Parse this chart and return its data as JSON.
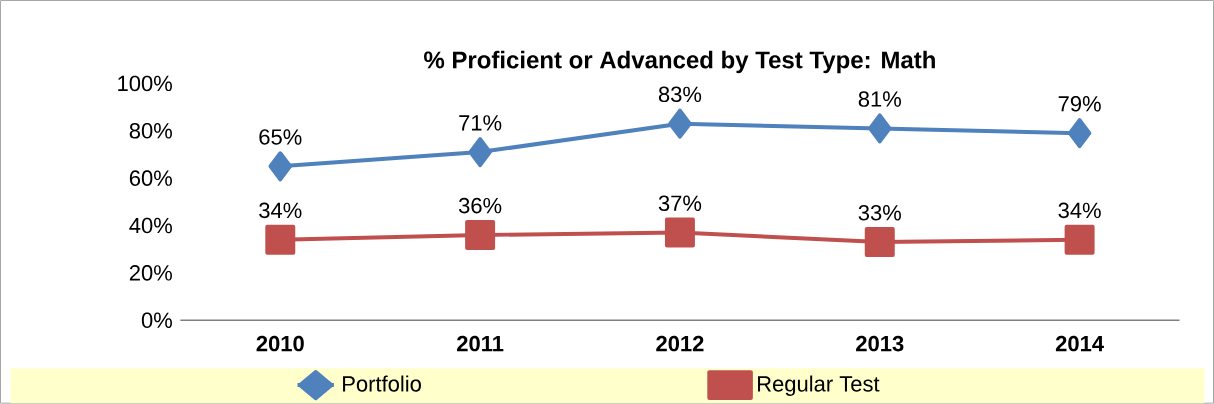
{
  "chart_data": {
    "type": "line",
    "title": "% Proficient or Advanced by Test Type: Math",
    "categories": [
      "2010",
      "2011",
      "2012",
      "2013",
      "2014"
    ],
    "series": [
      {
        "name": "Portfolio",
        "color": "#4f81bd",
        "marker": "diamond",
        "values": [
          65,
          71,
          83,
          81,
          79
        ],
        "value_labels": [
          "65%",
          "71%",
          "83%",
          "81%",
          "79%"
        ]
      },
      {
        "name": "Regular Test",
        "color": "#c0504d",
        "marker": "square",
        "values": [
          34,
          36,
          37,
          33,
          34
        ],
        "value_labels": [
          "34%",
          "36%",
          "37%",
          "33%",
          "34%"
        ]
      }
    ],
    "ylim": [
      0,
      100
    ],
    "yticks": [
      {
        "value": 0,
        "label": "0%"
      },
      {
        "value": 20,
        "label": "20%"
      },
      {
        "value": 40,
        "label": "40%"
      },
      {
        "value": 60,
        "label": "60%"
      },
      {
        "value": 80,
        "label": "80%"
      },
      {
        "value": 100,
        "label": "100%"
      }
    ],
    "grid": false,
    "legend": "bottom",
    "line_style": "solid"
  }
}
